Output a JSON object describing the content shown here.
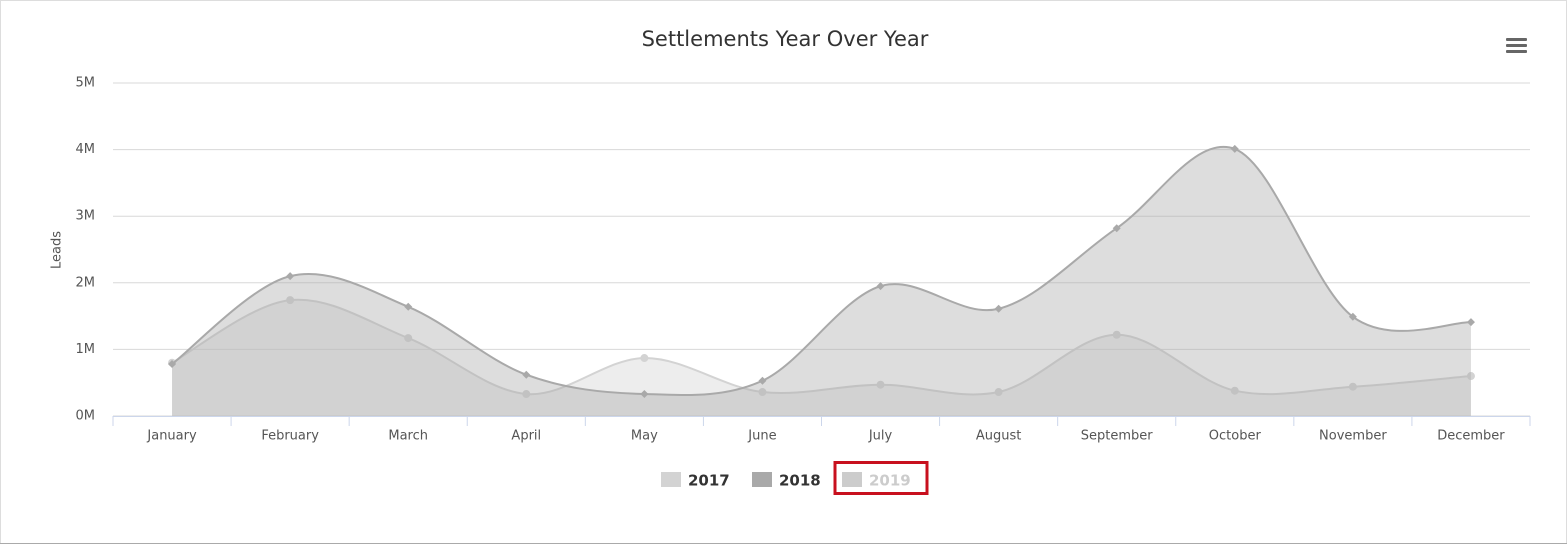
{
  "chart_data": {
    "type": "areaspline",
    "title": "Settlements Year Over Year",
    "y_axis_label": "Leads",
    "categories": [
      "January",
      "February",
      "March",
      "April",
      "May",
      "June",
      "July",
      "August",
      "September",
      "October",
      "November",
      "December"
    ],
    "series": [
      {
        "name": "2017",
        "color": "#d3d3d3",
        "marker": "circle",
        "values": [
          800000,
          1740000,
          1170000,
          330000,
          870000,
          360000,
          470000,
          360000,
          1220000,
          380000,
          440000,
          600000
        ]
      },
      {
        "name": "2018",
        "color": "#a9a9a9",
        "marker": "diamond",
        "values": [
          780000,
          2100000,
          1640000,
          620000,
          330000,
          530000,
          1950000,
          1610000,
          2820000,
          4010000,
          1490000,
          1410000
        ]
      },
      {
        "name": "2019",
        "color": "#cccccc",
        "marker": "circle",
        "visible": false,
        "values": [
          null,
          null,
          null,
          null,
          null,
          null,
          null,
          null,
          null,
          null,
          null,
          null
        ]
      }
    ],
    "ylim": [
      0,
      5000000
    ],
    "yticks": [
      {
        "value": 0,
        "label": "0M"
      },
      {
        "value": 1000000,
        "label": "1M"
      },
      {
        "value": 2000000,
        "label": "2M"
      },
      {
        "value": 3000000,
        "label": "3M"
      },
      {
        "value": 4000000,
        "label": "4M"
      },
      {
        "value": 5000000,
        "label": "5M"
      }
    ],
    "grid": true,
    "legend": "bottom"
  }
}
